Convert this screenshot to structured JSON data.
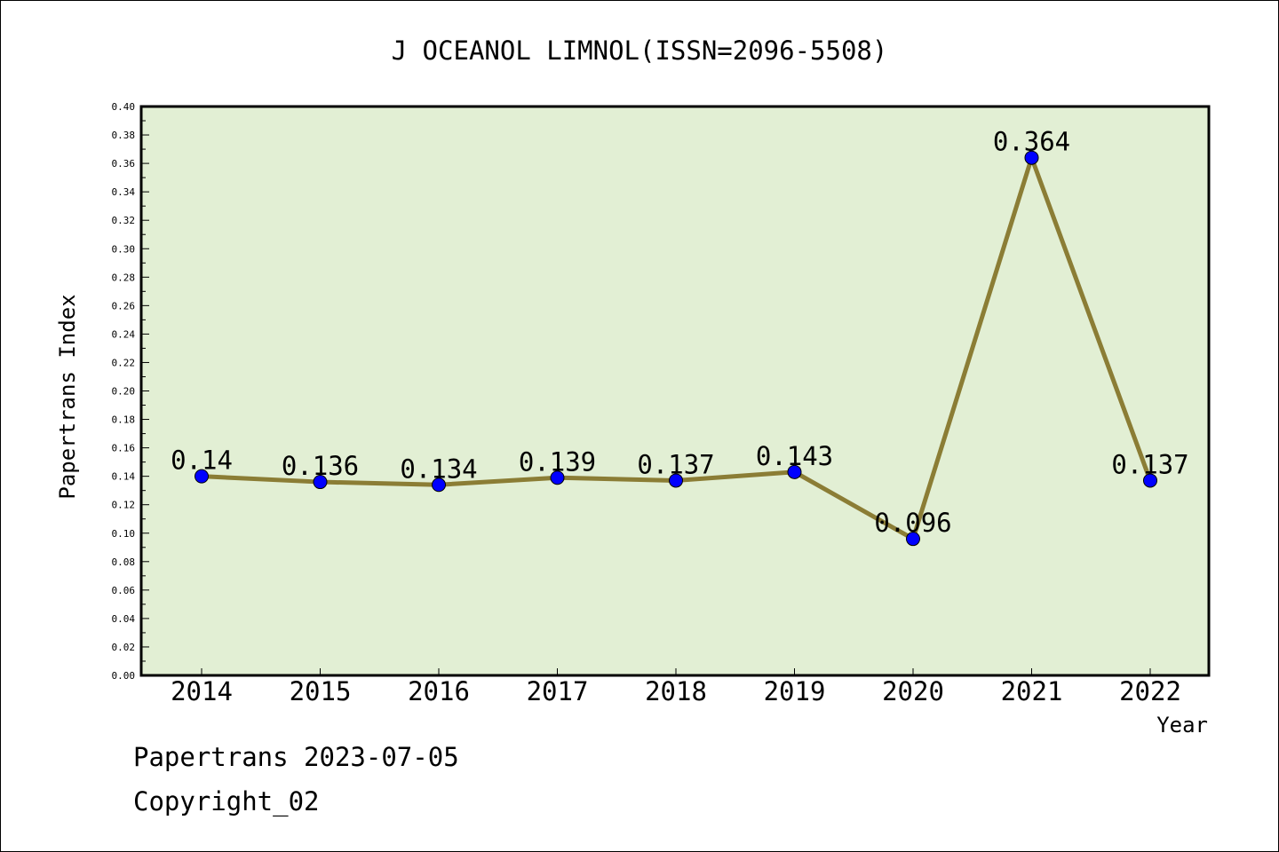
{
  "chart_data": {
    "type": "line",
    "title": "J OCEANOL LIMNOL(ISSN=2096-5508)",
    "xlabel": "Year",
    "ylabel": "Papertrans Index",
    "categories": [
      "2014",
      "2015",
      "2016",
      "2017",
      "2018",
      "2019",
      "2020",
      "2021",
      "2022"
    ],
    "values": [
      0.14,
      0.136,
      0.134,
      0.139,
      0.137,
      0.143,
      0.096,
      0.364,
      0.137
    ],
    "data_labels": [
      "0.14",
      "0.136",
      "0.134",
      "0.139",
      "0.137",
      "0.143",
      "0.096",
      "0.364",
      "0.137"
    ],
    "ylim": [
      0,
      0.4
    ],
    "yticks": [
      "0.00",
      "0.02",
      "0.04",
      "0.06",
      "0.08",
      "0.10",
      "0.12",
      "0.14",
      "0.16",
      "0.18",
      "0.20",
      "0.22",
      "0.24",
      "0.26",
      "0.28",
      "0.30",
      "0.32",
      "0.34",
      "0.36",
      "0.38",
      "0.40"
    ],
    "grid": false,
    "colors": {
      "plot_background": "#e2efd4",
      "line": "#8b7d35",
      "marker": "#0000ff"
    }
  },
  "footer": {
    "line1": "Papertrans 2023-07-05",
    "line2": "Copyright_02"
  }
}
